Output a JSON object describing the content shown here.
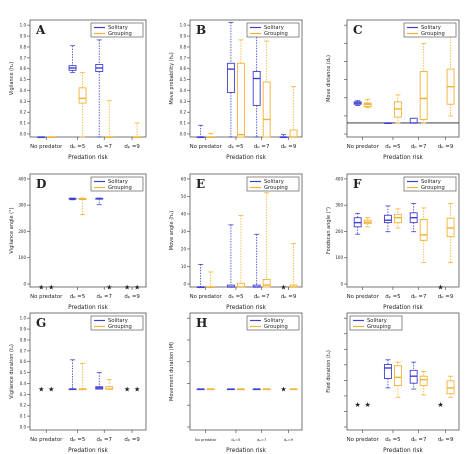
{
  "colors": {
    "solitary": "#3f3fd0",
    "grouping": "#f2b233",
    "frame": "#555555",
    "median_ref": "#222222"
  },
  "legend": {
    "solitary": "Solitary",
    "grouping": "Grouping"
  },
  "chart_data": [
    {
      "letter": "A",
      "type": "box",
      "ylabel": "Vigilance (hₐ)",
      "xlabel": "Predation risk",
      "categories": [
        "No predator",
        "dₚ =5",
        "dₚ =7",
        "dₚ =9"
      ],
      "ylim": [
        0,
        1
      ],
      "yticks": [
        "0.0",
        "0.1",
        "0.2",
        "0.3",
        "0.4",
        "0.5",
        "0.6",
        "0.7",
        "0.8",
        "0.9",
        "1.0"
      ],
      "legend_pos": "top-right",
      "series": [
        {
          "name": "Solitary",
          "boxes": [
            {
              "min": 0,
              "q1": 0,
              "med": 0,
              "q3": 0,
              "max": 0
            },
            {
              "min": 0.55,
              "q1": 0.57,
              "med": 0.59,
              "q3": 0.61,
              "max": 0.78
            },
            {
              "min": 0.0,
              "q1": 0.56,
              "med": 0.59,
              "q3": 0.62,
              "max": 0.83
            },
            null
          ]
        },
        {
          "name": "Grouping",
          "boxes": [
            {
              "min": 0,
              "q1": 0,
              "med": 0,
              "q3": 0,
              "max": 0
            },
            {
              "min": 0.0,
              "q1": 0.29,
              "med": 0.33,
              "q3": 0.42,
              "max": 0.55
            },
            {
              "min": 0,
              "q1": 0,
              "med": 0,
              "q3": 0,
              "max": 0.31
            },
            {
              "min": 0,
              "q1": 0,
              "med": 0,
              "q3": 0,
              "max": 0.12
            }
          ]
        }
      ]
    },
    {
      "letter": "B",
      "type": "box",
      "ylabel": "Move probability (hₐ)",
      "xlabel": "Predation risk",
      "categories": [
        "No predator",
        "dₚ =5",
        "dₚ =7",
        "dₚ =9"
      ],
      "ylim": [
        0,
        1
      ],
      "yticks": [
        "0.0",
        "0.1",
        "0.2",
        "0.3",
        "0.4",
        "0.5",
        "0.6",
        "0.7",
        "0.8",
        "0.9",
        "1.0"
      ],
      "legend_pos": "top-right",
      "series": [
        {
          "name": "Solitary",
          "boxes": [
            {
              "min": 0,
              "q1": 0,
              "med": 0,
              "q3": 0,
              "max": 0.1
            },
            {
              "min": 0,
              "q1": 0.38,
              "med": 0.58,
              "q3": 0.63,
              "max": 0.98
            },
            {
              "min": 0,
              "q1": 0.27,
              "med": 0.5,
              "q3": 0.56,
              "max": 0.97
            },
            {
              "min": 0,
              "q1": 0,
              "med": 0,
              "q3": 0,
              "max": 0.02
            }
          ]
        },
        {
          "name": "Grouping",
          "boxes": [
            {
              "min": 0,
              "q1": 0,
              "med": 0,
              "q3": 0,
              "max": 0.03
            },
            {
              "min": 0,
              "q1": 0,
              "med": 0.02,
              "q3": 0.63,
              "max": 0.83
            },
            {
              "min": 0,
              "q1": 0,
              "med": 0.15,
              "q3": 0.47,
              "max": 0.82
            },
            {
              "min": 0,
              "q1": 0,
              "med": 0,
              "q3": 0.06,
              "max": 0.43
            }
          ]
        }
      ]
    },
    {
      "letter": "C",
      "type": "box",
      "ylabel": "Move distance (dₐ)",
      "xlabel": "Predation risk",
      "categories": [
        "No predator",
        "dₚ =5",
        "dₚ =7",
        "dₚ =9"
      ],
      "ylim": [
        0,
        1
      ],
      "yticks": [
        "",
        "",
        "",
        "",
        "",
        "",
        ""
      ],
      "legend_pos": "top-right",
      "hline": 0.12,
      "series": [
        {
          "name": "Solitary",
          "boxes": [
            {
              "min": 0.27,
              "q1": 0.28,
              "med": 0.29,
              "q3": 0.3,
              "max": 0.31
            },
            {
              "min": 0.12,
              "q1": 0.12,
              "med": 0.12,
              "q3": 0.12,
              "max": 0.12
            },
            {
              "min": 0.12,
              "q1": 0.12,
              "med": 0.12,
              "q3": 0.16,
              "max": 0.16
            },
            null
          ]
        },
        {
          "name": "Grouping",
          "boxes": [
            {
              "min": 0.25,
              "q1": 0.26,
              "med": 0.28,
              "q3": 0.29,
              "max": 0.32
            },
            {
              "min": 0.12,
              "q1": 0.17,
              "med": 0.24,
              "q3": 0.3,
              "max": 0.36
            },
            {
              "min": 0.12,
              "q1": 0.15,
              "med": 0.33,
              "q3": 0.56,
              "max": 0.8
            },
            {
              "min": 0.18,
              "q1": 0.28,
              "med": 0.43,
              "q3": 0.58,
              "max": 0.95
            }
          ]
        }
      ]
    },
    {
      "letter": "D",
      "type": "box",
      "ylabel": "Vigilance angle (°)",
      "xlabel": "Predation risk",
      "categories": [
        "No predator",
        "dₚ =5",
        "dₚ =7",
        "dₚ =9"
      ],
      "ylim": [
        0,
        460
      ],
      "yticks": [
        "0",
        "100",
        "200",
        "300",
        "400"
      ],
      "legend_pos": "top-right",
      "series": [
        {
          "name": "Solitary",
          "boxes": [
            {
              "star": true,
              "y": 0
            },
            {
              "min": 355,
              "q1": 358,
              "med": 360,
              "q3": 360,
              "max": 362
            },
            {
              "min": 335,
              "q1": 358,
              "med": 360,
              "q3": 360,
              "max": 362
            },
            {
              "star": true,
              "y": 0
            }
          ]
        },
        {
          "name": "Grouping",
          "boxes": [
            {
              "star": true,
              "y": 0
            },
            {
              "min": 295,
              "q1": 356,
              "med": 358,
              "q3": 360,
              "max": 362
            },
            {
              "star": true,
              "y": 0
            },
            {
              "star": true,
              "y": 0
            }
          ]
        }
      ]
    },
    {
      "letter": "E",
      "type": "box",
      "ylabel": "Move angle (hₐ)",
      "xlabel": "Predation risk",
      "categories": [
        "No predator",
        "dₚ =5",
        "dₚ =7",
        "dₚ =9"
      ],
      "ylim": [
        0,
        60
      ],
      "yticks": [
        "0",
        "10",
        "20",
        "30",
        "40",
        "50",
        "60"
      ],
      "legend_pos": "top-right",
      "series": [
        {
          "name": "Solitary",
          "boxes": [
            {
              "min": 0,
              "q1": 0,
              "med": 0,
              "q3": 0,
              "max": 12
            },
            {
              "min": 0,
              "q1": 0,
              "med": 0,
              "q3": 1,
              "max": 33
            },
            {
              "min": 0,
              "q1": 0,
              "med": 0,
              "q3": 1,
              "max": 28
            },
            {
              "star": true,
              "y": 0
            }
          ]
        },
        {
          "name": "Grouping",
          "boxes": [
            {
              "min": 0,
              "q1": 0,
              "med": 0,
              "q3": 0,
              "max": 8
            },
            {
              "min": 0,
              "q1": 0,
              "med": 0,
              "q3": 2,
              "max": 38
            },
            {
              "min": 0,
              "q1": 0,
              "med": 1,
              "q3": 4,
              "max": 50
            },
            {
              "min": 0,
              "q1": 0,
              "med": 0,
              "q3": 1,
              "max": 23
            }
          ]
        }
      ]
    },
    {
      "letter": "F",
      "type": "box",
      "ylabel": "Foodscan angle (°)",
      "xlabel": "Predation risk",
      "categories": [
        "No predator",
        "dₚ =5",
        "dₚ =7",
        "dₚ =9"
      ],
      "ylim": [
        0,
        460
      ],
      "yticks": [
        "0",
        "100",
        "200",
        "300",
        "400"
      ],
      "legend_pos": "top-right",
      "series": [
        {
          "name": "Solitary",
          "boxes": [
            {
              "min": 215,
              "q1": 245,
              "med": 262,
              "q3": 282,
              "max": 300
            },
            {
              "min": 225,
              "q1": 262,
              "med": 272,
              "q3": 292,
              "max": 330
            },
            {
              "min": 225,
              "q1": 262,
              "med": 282,
              "q3": 302,
              "max": 340
            },
            {
              "star": true,
              "y": 0
            }
          ]
        },
        {
          "name": "Grouping",
          "boxes": [
            {
              "min": 245,
              "q1": 258,
              "med": 264,
              "q3": 272,
              "max": 282
            },
            {
              "min": 240,
              "q1": 262,
              "med": 282,
              "q3": 296,
              "max": 318
            },
            {
              "min": 100,
              "q1": 190,
              "med": 212,
              "q3": 275,
              "max": 322
            },
            {
              "min": 100,
              "q1": 205,
              "med": 240,
              "q3": 280,
              "max": 340
            }
          ]
        }
      ]
    },
    {
      "letter": "G",
      "type": "box",
      "ylabel": "Vigilance duration (tₐ)",
      "xlabel": "Predation risk",
      "categories": [
        "No predator",
        "dₚ =5",
        "dₚ =7",
        "dₚ =9"
      ],
      "ylim": [
        0,
        1
      ],
      "yticks": [
        "0.0",
        "0.1",
        "0.2",
        "0.3",
        "0.4",
        "0.5",
        "0.6",
        "0.7",
        "0.8",
        "0.9",
        "1.0"
      ],
      "legend_pos": "top-right",
      "series": [
        {
          "name": "Solitary",
          "boxes": [
            {
              "star": true,
              "y": 0.35
            },
            {
              "min": 0.35,
              "q1": 0.35,
              "med": 0.35,
              "q3": 0.35,
              "max": 0.6
            },
            {
              "min": 0.35,
              "q1": 0.35,
              "med": 0.36,
              "q3": 0.37,
              "max": 0.49
            },
            {
              "star": true,
              "y": 0.35
            }
          ]
        },
        {
          "name": "Grouping",
          "boxes": [
            {
              "star": true,
              "y": 0.35
            },
            {
              "min": 0.35,
              "q1": 0.35,
              "med": 0.35,
              "q3": 0.35,
              "max": 0.57
            },
            {
              "min": 0.35,
              "q1": 0.35,
              "med": 0.35,
              "q3": 0.37,
              "max": 0.43
            },
            {
              "star": true,
              "y": 0.35
            }
          ]
        }
      ]
    },
    {
      "letter": "H",
      "type": "box",
      "ylabel": "Movement duration (M)",
      "xlabel": "Predation risk",
      "categories": [
        "No predator",
        "dₚ=5",
        "dₚ=7",
        "dₚ=9"
      ],
      "small_ticks": true,
      "ylim": [
        0,
        1
      ],
      "yticks": [
        "",
        "",
        "",
        "",
        "",
        ""
      ],
      "legend_pos": "top-right",
      "series": [
        {
          "name": "Solitary",
          "boxes": [
            {
              "min": 0.35,
              "q1": 0.35,
              "med": 0.35,
              "q3": 0.35,
              "max": 0.35
            },
            {
              "min": 0.35,
              "q1": 0.35,
              "med": 0.35,
              "q3": 0.35,
              "max": 0.35
            },
            {
              "min": 0.35,
              "q1": 0.35,
              "med": 0.35,
              "q3": 0.35,
              "max": 0.35
            },
            {
              "star": true,
              "y": 0.35
            }
          ]
        },
        {
          "name": "Grouping",
          "boxes": [
            {
              "min": 0.35,
              "q1": 0.35,
              "med": 0.35,
              "q3": 0.35,
              "max": 0.35
            },
            {
              "min": 0.35,
              "q1": 0.35,
              "med": 0.35,
              "q3": 0.35,
              "max": 0.35
            },
            {
              "min": 0.35,
              "q1": 0.35,
              "med": 0.35,
              "q3": 0.35,
              "max": 0.35
            },
            {
              "min": 0.35,
              "q1": 0.35,
              "med": 0.35,
              "q3": 0.35,
              "max": 0.35
            }
          ]
        }
      ]
    },
    {
      "letter": "I",
      "type": "box",
      "ylabel": "Fled duration (tₐ)",
      "xlabel": "Predation risk",
      "categories": [
        "No predator",
        "dₚ =5",
        "dₚ =7",
        "dₚ =9"
      ],
      "ylim": [
        0,
        1
      ],
      "yticks": [
        "",
        "",
        "",
        "",
        "",
        "",
        "",
        ""
      ],
      "legend_pos": "top-left",
      "series": [
        {
          "name": "Solitary",
          "boxes": [
            {
              "star": true,
              "y": 0.22
            },
            {
              "min": 0.36,
              "q1": 0.44,
              "med": 0.53,
              "q3": 0.56,
              "max": 0.6
            },
            {
              "min": 0.35,
              "q1": 0.4,
              "med": 0.46,
              "q3": 0.51,
              "max": 0.58
            },
            {
              "star": true,
              "y": 0.22
            }
          ]
        },
        {
          "name": "Grouping",
          "boxes": [
            {
              "star": true,
              "y": 0.22
            },
            {
              "min": 0.28,
              "q1": 0.38,
              "med": 0.45,
              "q3": 0.55,
              "max": 0.58
            },
            {
              "min": 0.3,
              "q1": 0.38,
              "med": 0.43,
              "q3": 0.46,
              "max": 0.5
            },
            {
              "min": 0.28,
              "q1": 0.31,
              "med": 0.36,
              "q3": 0.42,
              "max": 0.46
            }
          ]
        }
      ]
    }
  ]
}
